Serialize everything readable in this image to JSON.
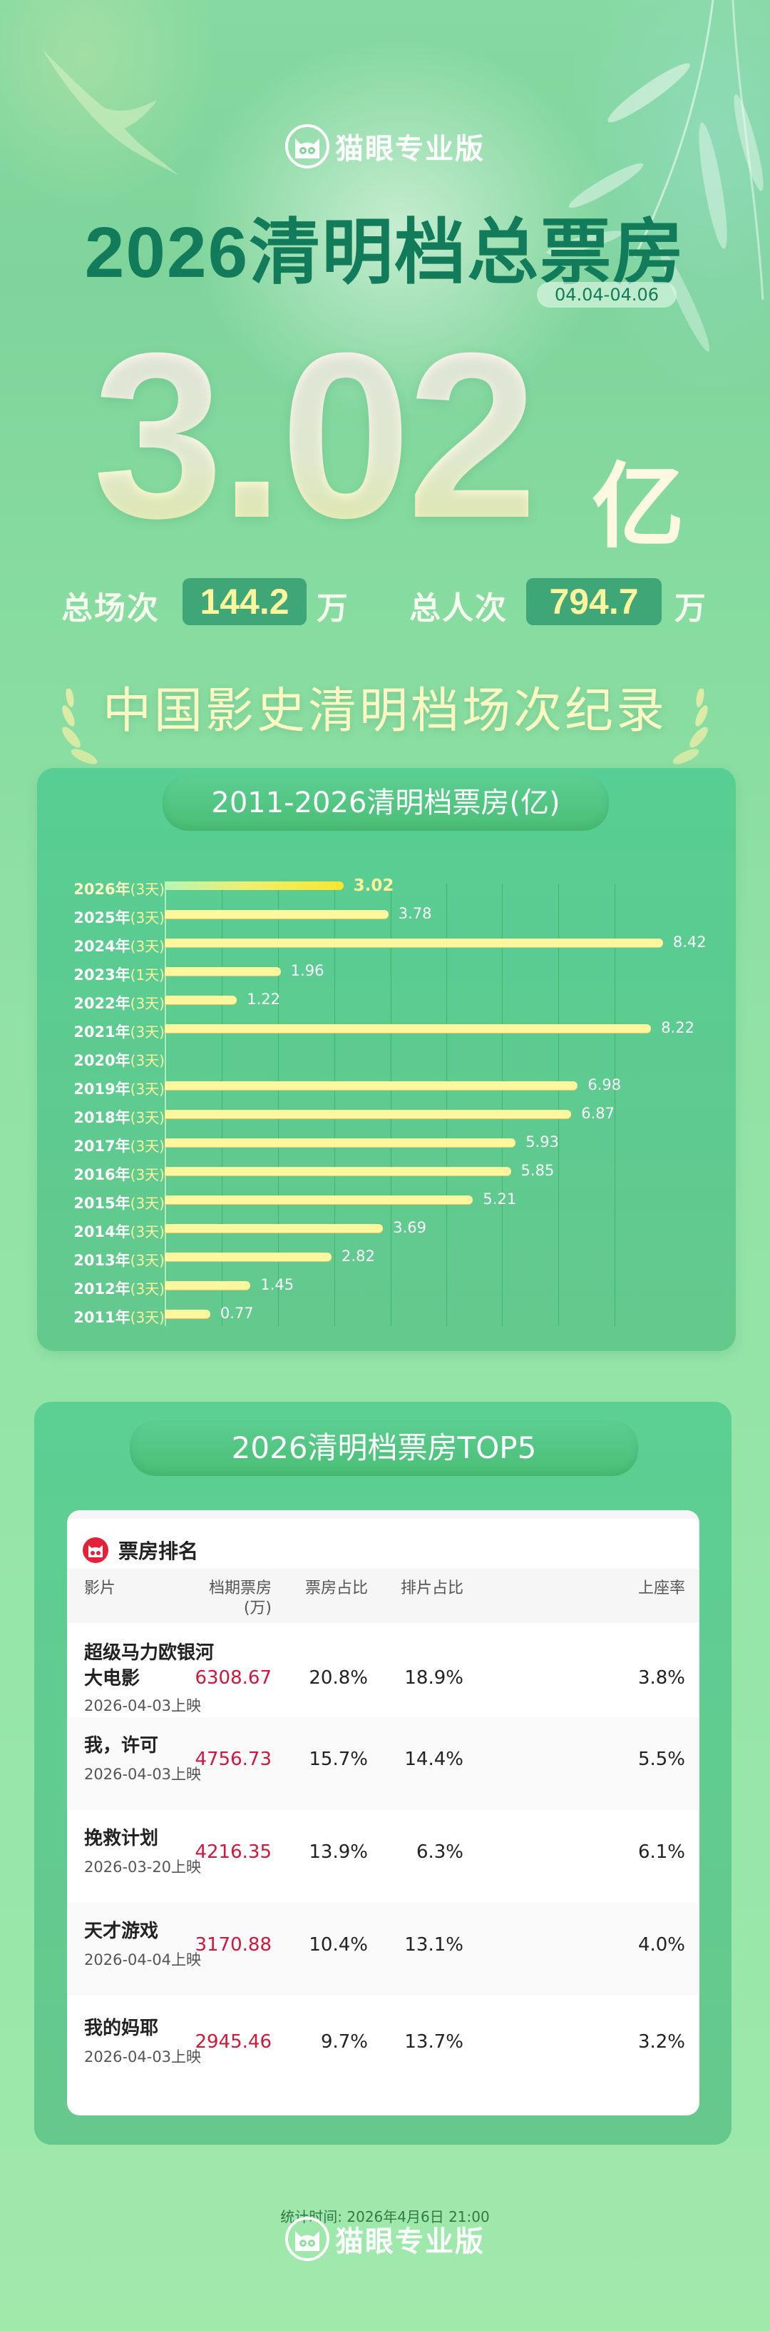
{
  "brand": {
    "name": "猫眼专业版",
    "logo_icon": "cat-face-icon"
  },
  "header": {
    "title": "2026清明档总票房",
    "date_range": "04.04-04.06",
    "total_box_office": "3.02",
    "total_unit": "亿"
  },
  "stats": {
    "sessions_label": "总场次",
    "sessions_value": "144.2",
    "sessions_unit": "万",
    "admissions_label": "总人次",
    "admissions_value": "794.7",
    "admissions_unit": "万"
  },
  "record_banner": "中国影史清明档场次纪录",
  "chart_section": {
    "title": "2011-2026清明档票房(亿)"
  },
  "chart_data": {
    "type": "bar",
    "orientation": "horizontal",
    "title": "2011-2026清明档票房(亿)",
    "xlabel": "",
    "ylabel": "",
    "unit": "亿",
    "grid": true,
    "categories": [
      "2026年",
      "2025年",
      "2024年",
      "2023年",
      "2022年",
      "2021年",
      "2020年",
      "2019年",
      "2018年",
      "2017年",
      "2016年",
      "2015年",
      "2014年",
      "2013年",
      "2012年",
      "2011年"
    ],
    "day_counts": [
      "(3天)",
      "(3天)",
      "(3天)",
      "(1天)",
      "(3天)",
      "(3天)",
      "(3天)",
      "(3天)",
      "(3天)",
      "(3天)",
      "(3天)",
      "(3天)",
      "(3天)",
      "(3天)",
      "(3天)",
      "(3天)"
    ],
    "values": [
      3.02,
      3.78,
      8.42,
      1.96,
      1.22,
      8.22,
      null,
      6.98,
      6.87,
      5.93,
      5.85,
      5.21,
      3.69,
      2.82,
      1.45,
      0.77
    ],
    "value_labels": [
      "3.02",
      "3.78",
      "8.42",
      "1.96",
      "1.22",
      "8.22",
      "",
      "6.98",
      "6.87",
      "5.93",
      "5.85",
      "5.21",
      "3.69",
      "2.82",
      "1.45",
      "0.77"
    ],
    "highlight": "2026年",
    "colors": {
      "bar": "#fef79d",
      "highlight_end": "#fbe52c",
      "background": "#5dcb90"
    }
  },
  "top5_section": {
    "title": "2026清明档票房TOP5",
    "panel_title": "票房排名",
    "columns": [
      "影片",
      "档期票房",
      "(万)",
      "票房占比",
      "排片占比",
      "上座率"
    ],
    "rows": [
      {
        "name_line1": "超级马力欧银河",
        "name_line2": "大电影",
        "release": "2026-04-03上映",
        "box_office": "6308.67",
        "bo_share": "20.8%",
        "screen_share": "18.9%",
        "occupancy": "3.8%"
      },
      {
        "name_line1": "我，许可",
        "name_line2": "",
        "release": "2026-04-03上映",
        "box_office": "4756.73",
        "bo_share": "15.7%",
        "screen_share": "14.4%",
        "occupancy": "5.5%"
      },
      {
        "name_line1": "挽救计划",
        "name_line2": "",
        "release": "2026-03-20上映",
        "box_office": "4216.35",
        "bo_share": "13.9%",
        "screen_share": "6.3%",
        "occupancy": "6.1%"
      },
      {
        "name_line1": "天才游戏",
        "name_line2": "",
        "release": "2026-04-04上映",
        "box_office": "3170.88",
        "bo_share": "10.4%",
        "screen_share": "13.1%",
        "occupancy": "4.0%"
      },
      {
        "name_line1": "我的妈耶",
        "name_line2": "",
        "release": "2026-04-03上映",
        "box_office": "2945.46",
        "bo_share": "9.7%",
        "screen_share": "13.7%",
        "occupancy": "3.2%"
      }
    ]
  },
  "footer": {
    "stat_time": "统计时间: 2026年4月6日 21:00"
  },
  "colors": {
    "title_green": "#127c5a",
    "accent_yellow": "#fff59d",
    "red": "#d0173c"
  }
}
